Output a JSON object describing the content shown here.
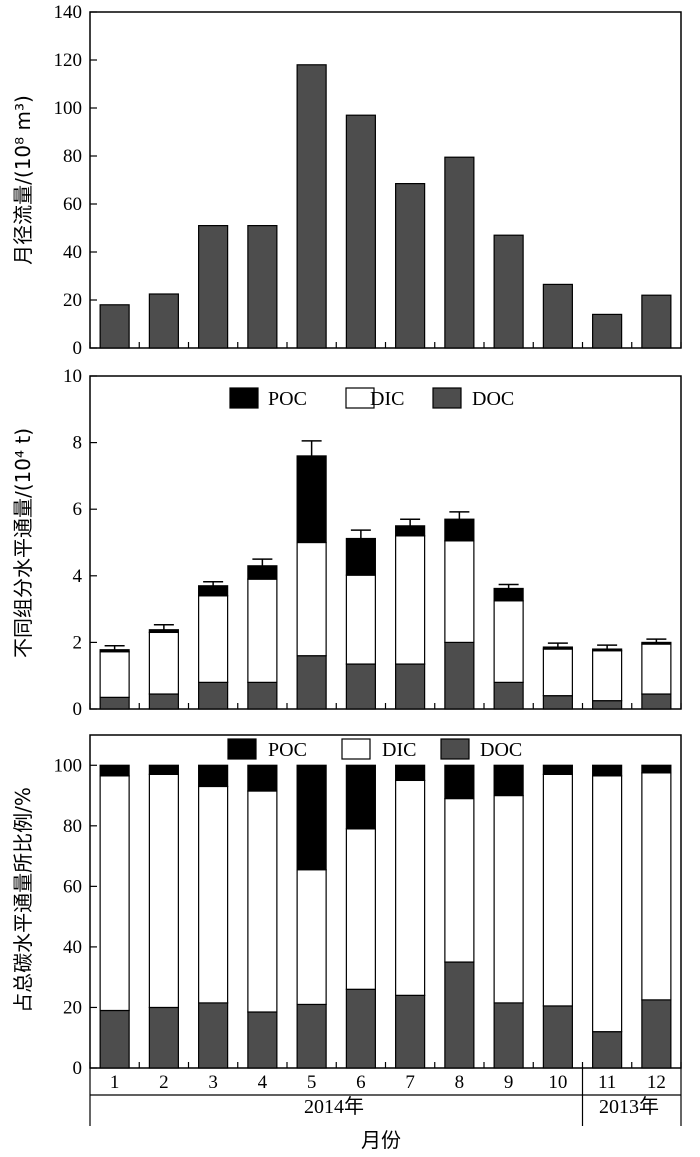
{
  "colors": {
    "DOC": "#4d4d4d",
    "DIC": "#ffffff",
    "POC": "#000000",
    "runoff": "#4d4d4d"
  },
  "x_tick_labels": [
    "1",
    "2",
    "3",
    "4",
    "5",
    "6",
    "7",
    "8",
    "9",
    "10",
    "11",
    "12"
  ],
  "x_groups": [
    "2014年",
    "2013年"
  ],
  "x_axis_title": "月份",
  "chart_data": [
    {
      "type": "bar",
      "ylabel": "月径流量/(10⁸ m³)",
      "ylim": [
        0,
        140
      ],
      "yticks": [
        "0",
        "20",
        "40",
        "60",
        "80",
        "100",
        "120",
        "140"
      ],
      "categories": [
        "1",
        "2",
        "3",
        "4",
        "5",
        "6",
        "7",
        "8",
        "9",
        "10",
        "11",
        "12"
      ],
      "values": [
        18,
        22.5,
        51,
        51,
        118,
        97,
        68.5,
        79.5,
        47,
        26.5,
        14,
        22
      ]
    },
    {
      "type": "bar",
      "stacked": true,
      "ylabel": "不同组分水平通量/(10⁴ t)",
      "ylim": [
        0,
        10
      ],
      "yticks": [
        "0",
        "2",
        "4",
        "6",
        "8",
        "10"
      ],
      "legend": [
        "POC",
        "DIC",
        "DOC"
      ],
      "legend_position": "top-center",
      "categories": [
        "1",
        "2",
        "3",
        "4",
        "5",
        "6",
        "7",
        "8",
        "9",
        "10",
        "11",
        "12"
      ],
      "series": [
        {
          "name": "DOC",
          "values": [
            0.35,
            0.45,
            0.8,
            0.8,
            1.6,
            1.35,
            1.35,
            2.0,
            0.8,
            0.4,
            0.25,
            0.45
          ]
        },
        {
          "name": "DIC",
          "values": [
            1.37,
            1.85,
            2.6,
            3.1,
            3.4,
            2.67,
            3.85,
            3.05,
            2.45,
            1.4,
            1.5,
            1.5
          ]
        },
        {
          "name": "POC",
          "values": [
            0.06,
            0.08,
            0.3,
            0.4,
            2.6,
            1.1,
            0.3,
            0.65,
            0.37,
            0.06,
            0.05,
            0.05
          ]
        }
      ],
      "error_bars": [
        0.12,
        0.15,
        0.12,
        0.2,
        0.45,
        0.25,
        0.2,
        0.22,
        0.12,
        0.12,
        0.12,
        0.1
      ]
    },
    {
      "type": "bar",
      "stacked": true,
      "ylabel": "占总碳水平通量所比例/%",
      "ylim": [
        0,
        110
      ],
      "yticks": [
        "0",
        "20",
        "40",
        "60",
        "80",
        "100"
      ],
      "legend": [
        "POC",
        "DIC",
        "DOC"
      ],
      "legend_position": "top-center",
      "categories": [
        "1",
        "2",
        "3",
        "4",
        "5",
        "6",
        "7",
        "8",
        "9",
        "10",
        "11",
        "12"
      ],
      "series": [
        {
          "name": "DOC",
          "values": [
            19,
            20,
            21.5,
            18.5,
            21,
            26,
            24,
            35,
            21.5,
            20.5,
            12,
            22.5
          ]
        },
        {
          "name": "DIC",
          "values": [
            77.5,
            77,
            71.5,
            73,
            44.5,
            53,
            71,
            54,
            68.5,
            76.5,
            84.5,
            75
          ]
        },
        {
          "name": "POC",
          "values": [
            3.5,
            3,
            7,
            8.5,
            34.5,
            21,
            5,
            11,
            10,
            3,
            3.5,
            2.5
          ]
        }
      ]
    }
  ]
}
